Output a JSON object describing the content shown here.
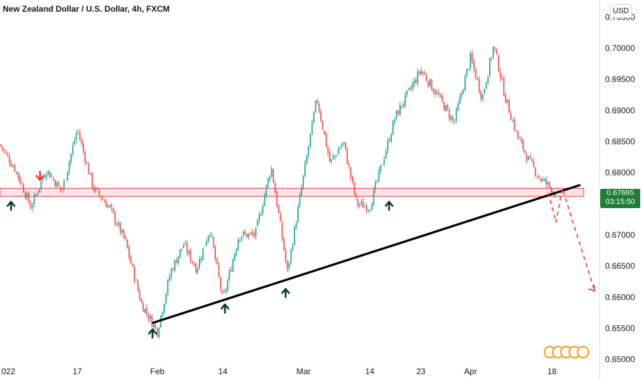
{
  "header": {
    "title": "New Zealand Dollar / U.S. Dollar, 4h, FXCM",
    "currency": "USD"
  },
  "price_tag": {
    "price": "0.67665",
    "countdown": "03:15:50"
  },
  "colors": {
    "up_candle": "#26a69a",
    "down_candle": "#ef5350",
    "zone_fill": "#ffcdd2",
    "zone_border": "#e53935",
    "trendline": "#000000",
    "projection": "#e53935",
    "up_arrow": "#0d3b2e",
    "down_arrow": "#e53935",
    "price_tag": "#1e7e34"
  },
  "chart_data": {
    "type": "candlestick",
    "yaxis": {
      "ticks": [
        "0.70500",
        "0.70000",
        "0.69500",
        "0.69000",
        "0.68500",
        "0.68000",
        "0.67500",
        "0.67000",
        "0.66500",
        "0.66000",
        "0.65500",
        "0.65000"
      ],
      "range": [
        0.6493,
        0.7062
      ]
    },
    "xaxis": {
      "ticks": [
        "022",
        "17",
        "Feb",
        "14",
        "Mar",
        "14",
        "23",
        "Apr",
        "18"
      ]
    },
    "price_path": [
      [
        "022",
        0.6845
      ],
      [
        "",
        0.6805
      ],
      [
        "",
        0.6745
      ],
      [
        "",
        0.6805
      ],
      [
        "",
        0.677
      ],
      [
        "17",
        0.687
      ],
      [
        "",
        0.6775
      ],
      [
        "",
        0.6745
      ],
      [
        "",
        0.669
      ],
      [
        "",
        0.659
      ],
      [
        "Feb",
        0.6545
      ],
      [
        "",
        0.664
      ],
      [
        "",
        0.6685
      ],
      [
        "",
        0.6645
      ],
      [
        "",
        0.671
      ],
      [
        "14",
        0.6595
      ],
      [
        "",
        0.67
      ],
      [
        "",
        0.67
      ],
      [
        "",
        0.681
      ],
      [
        "",
        0.664
      ],
      [
        "Mar",
        0.6795
      ],
      [
        "",
        0.692
      ],
      [
        "",
        0.6815
      ],
      [
        "",
        0.685
      ],
      [
        "",
        0.675
      ],
      [
        "14",
        0.6745
      ],
      [
        "",
        0.689
      ],
      [
        "23",
        0.6965
      ],
      [
        "",
        0.6925
      ],
      [
        "",
        0.688
      ],
      [
        "Apr",
        0.6985
      ],
      [
        "",
        0.692
      ],
      [
        "",
        0.7005
      ],
      [
        "",
        0.692
      ],
      [
        "",
        0.686
      ],
      [
        "",
        0.682
      ],
      [
        "",
        0.679
      ],
      [
        "18",
        0.6775
      ],
      [
        "",
        0.6765
      ]
    ],
    "annotations": {
      "resistance_zone": [
        0.6762,
        0.6775
      ],
      "trendline": {
        "from": [
          "Feb",
          0.6559
        ],
        "to": [
          "18",
          0.678
        ]
      },
      "up_arrows": [
        0.676,
        0.6555,
        0.6595,
        0.662,
        0.676
      ],
      "down_arrows": [
        0.6795
      ],
      "projection_path": [
        0.6768,
        0.672,
        0.6775,
        0.661
      ]
    }
  }
}
